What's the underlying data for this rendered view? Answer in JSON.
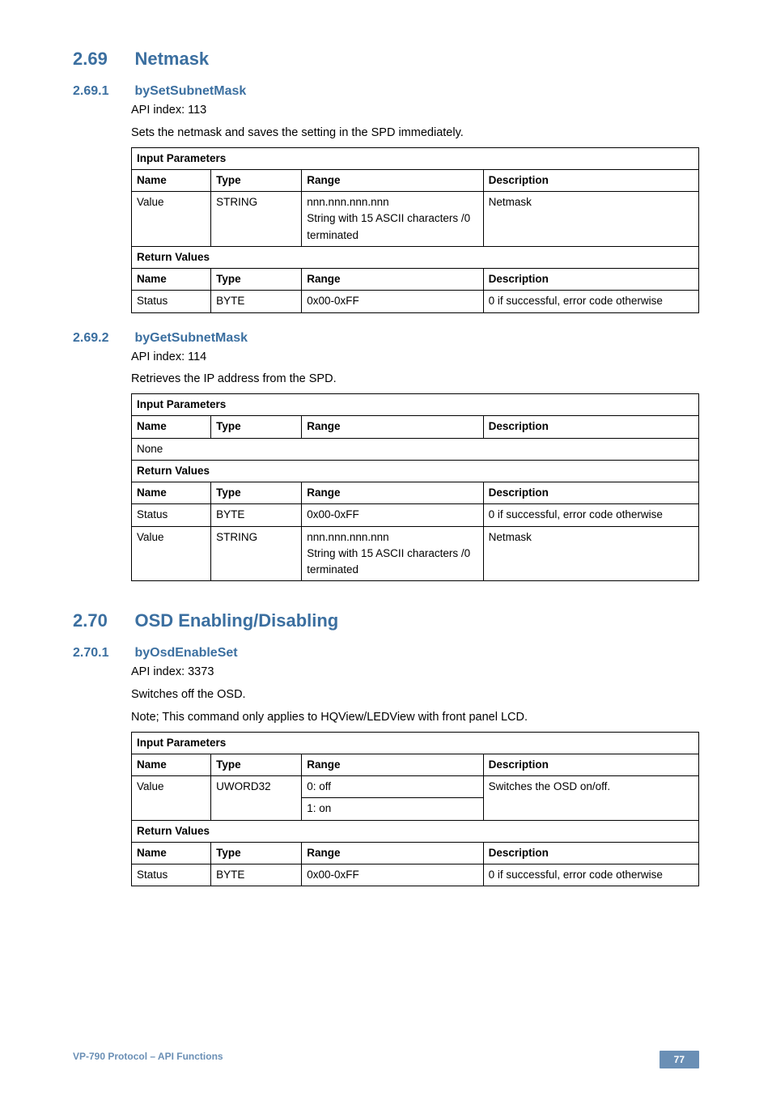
{
  "s269": {
    "num": "2.69",
    "title": "Netmask",
    "sub1": {
      "num": "2.69.1",
      "title": "bySetSubnetMask",
      "api": "API index: 113",
      "desc": "Sets the netmask and saves the setting in the SPD immediately.",
      "table": {
        "hdr_input": "Input Parameters",
        "cols": {
          "name": "Name",
          "type": "Type",
          "range": "Range",
          "desc": "Description"
        },
        "row1": {
          "name": "Value",
          "type": "STRING",
          "range1": "nnn.nnn.nnn.nnn",
          "range2": "String with 15 ASCII characters /0 terminated",
          "desc": "Netmask"
        },
        "hdr_return": "Return Values",
        "row2": {
          "name": "Status",
          "type": "BYTE",
          "range": "0x00-0xFF",
          "desc": "0 if successful, error code otherwise"
        }
      }
    },
    "sub2": {
      "num": "2.69.2",
      "title": "byGetSubnetMask",
      "api": "API index: 114",
      "desc": "Retrieves the IP address from the SPD.",
      "table": {
        "hdr_input": "Input Parameters",
        "cols": {
          "name": "Name",
          "type": "Type",
          "range": "Range",
          "desc": "Description"
        },
        "none": "None",
        "hdr_return": "Return Values",
        "row1": {
          "name": "Status",
          "type": "BYTE",
          "range": "0x00-0xFF",
          "desc": "0 if successful, error code otherwise"
        },
        "row2": {
          "name": "Value",
          "type": "STRING",
          "range1": "nnn.nnn.nnn.nnn",
          "range2": "String with 15 ASCII characters /0 terminated",
          "desc": "Netmask"
        }
      }
    }
  },
  "s270": {
    "num": "2.70",
    "title": "OSD Enabling/Disabling",
    "sub1": {
      "num": "2.70.1",
      "title": "byOsdEnableSet",
      "api": "API index: 3373",
      "desc1": "Switches off the OSD.",
      "desc2": "Note; This command only applies to HQView/LEDView with front panel LCD.",
      "table": {
        "hdr_input": "Input Parameters",
        "cols": {
          "name": "Name",
          "type": "Type",
          "range": "Range",
          "desc": "Description"
        },
        "row1": {
          "name": "Value",
          "type": "UWORD32",
          "range1": "0: off",
          "range2": "1: on",
          "desc": "Switches the OSD on/off."
        },
        "hdr_return": "Return Values",
        "row2": {
          "name": "Status",
          "type": "BYTE",
          "range": "0x00-0xFF",
          "desc": "0 if successful, error code otherwise"
        }
      }
    }
  },
  "footer": {
    "left": "VP-790 Protocol –  API Functions",
    "page": "77"
  }
}
